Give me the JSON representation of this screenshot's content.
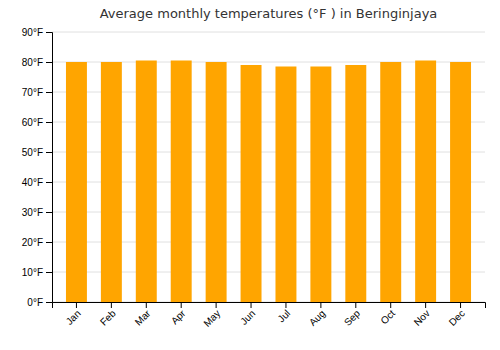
{
  "chart_data": {
    "type": "bar",
    "title": "Average monthly temperatures (°F ) in Beringinjaya",
    "categories": [
      "Jan",
      "Feb",
      "Mar",
      "Apr",
      "May",
      "Jun",
      "Jul",
      "Aug",
      "Sep",
      "Oct",
      "Nov",
      "Dec"
    ],
    "values": [
      80.0,
      80.0,
      80.5,
      80.5,
      80.0,
      79.0,
      78.5,
      78.5,
      79.0,
      80.0,
      80.5,
      80.0
    ],
    "color": "#FFA500",
    "ylim": [
      0,
      90
    ],
    "yticks": [
      {
        "value": 0,
        "label": "0°F"
      },
      {
        "value": 10,
        "label": "10°F"
      },
      {
        "value": 20,
        "label": "20°F"
      },
      {
        "value": 30,
        "label": "30°F"
      },
      {
        "value": 40,
        "label": "40°F"
      },
      {
        "value": 50,
        "label": "50°F"
      },
      {
        "value": 60,
        "label": "60°F"
      },
      {
        "value": 70,
        "label": "70°F"
      },
      {
        "value": 80,
        "label": "80°F"
      },
      {
        "value": 90,
        "label": "90°F"
      }
    ],
    "grid": true
  }
}
